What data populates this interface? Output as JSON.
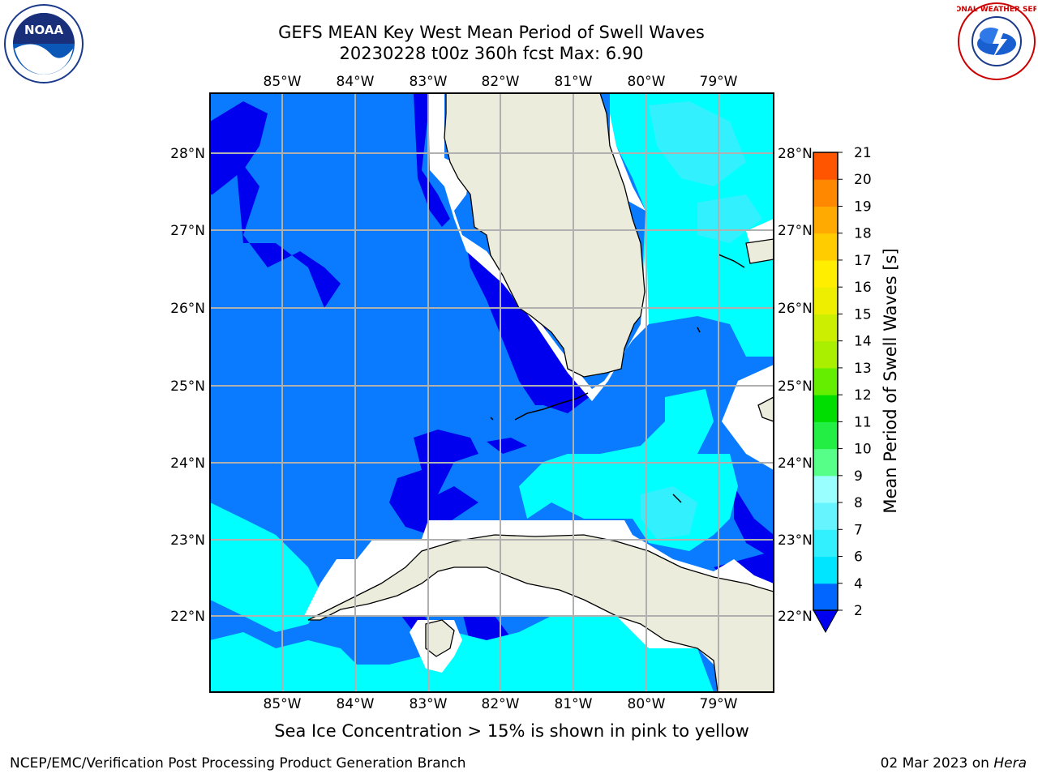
{
  "title": {
    "line1": "GEFS MEAN Key West Mean Period of Swell Waves",
    "line2": "20230228 t00z 360h fcst   Max: 6.90"
  },
  "logos": {
    "left": {
      "name": "noaa-logo",
      "text": "NOAA"
    },
    "right": {
      "name": "nws-logo",
      "text": "NATIONAL WEATHER SERVICE"
    }
  },
  "map": {
    "lon_ticks": [
      "85°W",
      "84°W",
      "83°W",
      "82°W",
      "81°W",
      "80°W",
      "79°W"
    ],
    "lat_ticks": [
      "28°N",
      "27°N",
      "26°N",
      "25°N",
      "24°N",
      "23°N",
      "22°N"
    ],
    "lon_range": [
      -86.0,
      -78.3
    ],
    "lat_range": [
      21.05,
      28.8
    ],
    "land_color": "#ececdc",
    "grid_color": "#b0b0b0"
  },
  "colorbar": {
    "label": "Mean Period of Swell Waves [s]",
    "ticks": [
      "21",
      "20",
      "19",
      "18",
      "17",
      "16",
      "15",
      "14",
      "13",
      "12",
      "11",
      "10",
      "9",
      "8",
      "7",
      "6",
      "4",
      "2"
    ],
    "levels": [
      2,
      4,
      6,
      7,
      8,
      9,
      10,
      11,
      12,
      13,
      14,
      15,
      16,
      17,
      18,
      19,
      20,
      21
    ],
    "colors": [
      "#0066ff",
      "#00e5ff",
      "#33f0ff",
      "#66f5ff",
      "#99ffff",
      "#55ff88",
      "#22ee44",
      "#00dd00",
      "#66ee00",
      "#aaee00",
      "#ccee00",
      "#eeee00",
      "#ffee00",
      "#ffcc00",
      "#ffaa00",
      "#ff8800",
      "#ff5500",
      "#ff0000"
    ],
    "under_color": "#0000ee"
  },
  "ice_note": "Sea Ice Concentration > 15% is shown in pink to yellow",
  "footer": {
    "left": "NCEP/EMC/Verification Post Processing Product Generation Branch",
    "right_date": "02 Mar 2023 on ",
    "right_host": "Hera"
  }
}
